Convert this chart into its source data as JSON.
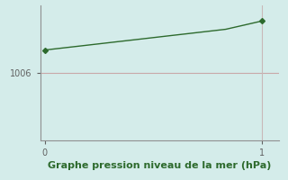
{
  "x_data": [
    0,
    0.083,
    0.167,
    0.25,
    0.333,
    0.417,
    0.5,
    0.583,
    0.667,
    0.75,
    0.833,
    0.917,
    1.0
  ],
  "y_data": [
    1008.2,
    1008.4,
    1008.6,
    1008.8,
    1009.0,
    1009.2,
    1009.4,
    1009.6,
    1009.8,
    1010.0,
    1010.2,
    1010.6,
    1011.0
  ],
  "line_color": "#2d6a2d",
  "marker_color": "#2d6a2d",
  "background_color": "#d4ecea",
  "grid_color_h": "#c8a8a8",
  "grid_color_v": "#c8b8b8",
  "axis_color": "#909090",
  "xlabel": "Graphe pression niveau de la mer (hPa)",
  "xlabel_color": "#2d6a2d",
  "ytick_labels": [
    "1006"
  ],
  "ytick_values": [
    1006
  ],
  "xtick_labels": [
    "0",
    "1"
  ],
  "xtick_values": [
    0,
    1
  ],
  "xlim": [
    -0.02,
    1.08
  ],
  "ylim": [
    999.5,
    1012.5
  ],
  "figsize": [
    3.2,
    2.0
  ],
  "dpi": 100
}
